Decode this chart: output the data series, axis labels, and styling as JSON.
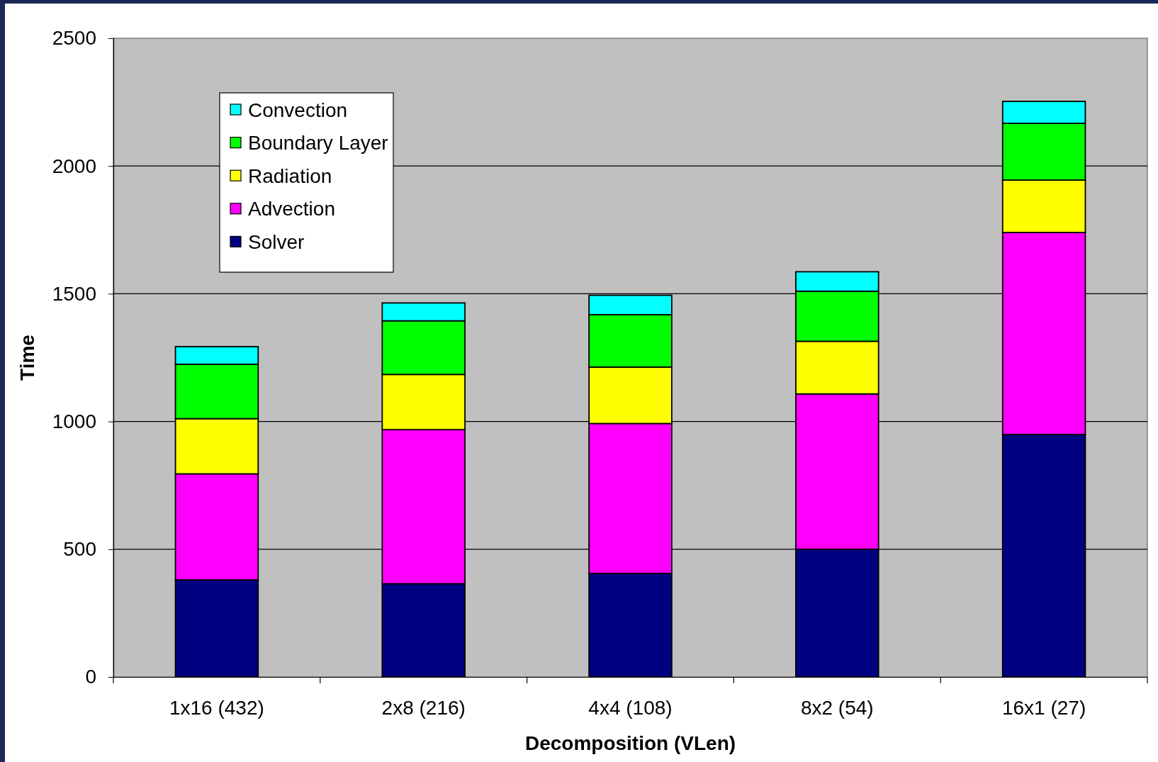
{
  "chart_data": {
    "type": "bar",
    "stacked": true,
    "xlabel": "Decomposition (VLen)",
    "ylabel": "Time",
    "categories": [
      "1x16 (432)",
      "2x8 (216)",
      "4x4 (108)",
      "8x2 (54)",
      "16x1 (27)"
    ],
    "series": [
      {
        "name": "Solver",
        "color": "#000080",
        "values": [
          380,
          365,
          405,
          500,
          949
        ]
      },
      {
        "name": "Advection",
        "color": "#ff00ff",
        "values": [
          415,
          603,
          587,
          608,
          791
        ]
      },
      {
        "name": "Radiation",
        "color": "#ffff00",
        "values": [
          216,
          216,
          221,
          206,
          205
        ]
      },
      {
        "name": "Boundary Layer",
        "color": "#00ff00",
        "values": [
          213,
          210,
          205,
          196,
          222
        ]
      },
      {
        "name": "Convection",
        "color": "#00ffff",
        "values": [
          69,
          70,
          76,
          76,
          86
        ]
      }
    ],
    "ylim": [
      0,
      2500
    ],
    "yticks": [
      0,
      500,
      1000,
      1500,
      2000,
      2500
    ],
    "grid": "y",
    "legend": "top left"
  }
}
